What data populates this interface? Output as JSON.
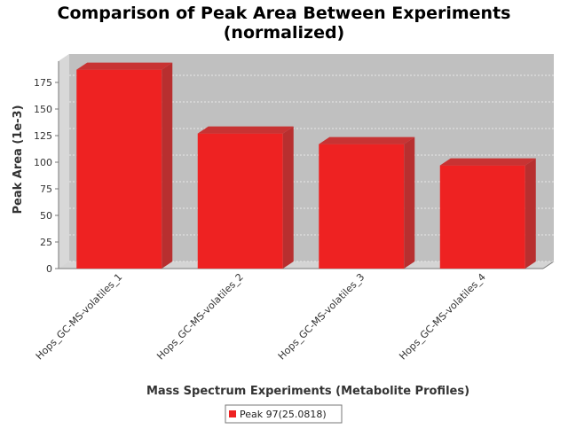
{
  "chart_data": {
    "type": "bar",
    "title": "Comparison of Peak Area Between Experiments",
    "subtitle": "(normalized)",
    "xlabel": "Mass Spectrum Experiments (Metabolite Profiles)",
    "ylabel": "Peak Area (1e-3)",
    "categories": [
      "Hops_GC-MS-volatiles_1",
      "Hops_GC-MS-volatiles_2",
      "Hops_GC-MS-volatiles_3",
      "Hops_GC-MS-volatiles_4"
    ],
    "series": [
      {
        "name": "Peak 97(25.0818)",
        "values": [
          187,
          127,
          117,
          97
        ],
        "color": "#ee2222"
      }
    ],
    "ylim": [
      0,
      195
    ],
    "yticks": [
      0,
      25,
      50,
      75,
      100,
      125,
      150,
      175
    ],
    "grid": true,
    "legend_position": "bottom",
    "plot_background": "#c0c0c0"
  }
}
